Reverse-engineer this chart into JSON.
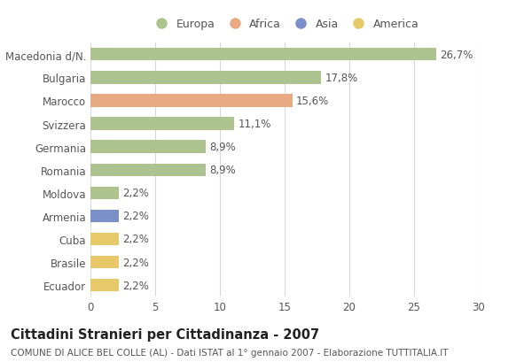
{
  "categories": [
    "Macedonia d/N.",
    "Bulgaria",
    "Marocco",
    "Svizzera",
    "Germania",
    "Romania",
    "Moldova",
    "Armenia",
    "Cuba",
    "Brasile",
    "Ecuador"
  ],
  "values": [
    26.7,
    17.8,
    15.6,
    11.1,
    8.9,
    8.9,
    2.2,
    2.2,
    2.2,
    2.2,
    2.2
  ],
  "labels": [
    "26,7%",
    "17,8%",
    "15,6%",
    "11,1%",
    "8,9%",
    "8,9%",
    "2,2%",
    "2,2%",
    "2,2%",
    "2,2%",
    "2,2%"
  ],
  "colors": [
    "#adc490",
    "#adc490",
    "#e8aa82",
    "#adc490",
    "#adc490",
    "#adc490",
    "#adc490",
    "#7b8fc8",
    "#e8c96a",
    "#e8c96a",
    "#e8c96a"
  ],
  "legend_labels": [
    "Europa",
    "Africa",
    "Asia",
    "America"
  ],
  "legend_colors": [
    "#adc490",
    "#e8aa82",
    "#7b8fc8",
    "#e8c96a"
  ],
  "xlim": [
    0,
    30
  ],
  "xticks": [
    0,
    5,
    10,
    15,
    20,
    25,
    30
  ],
  "title": "Cittadini Stranieri per Cittadinanza - 2007",
  "subtitle": "COMUNE DI ALICE BEL COLLE (AL) - Dati ISTAT al 1° gennaio 2007 - Elaborazione TUTTITALIA.IT",
  "bg_color": "#ffffff",
  "grid_color": "#d8d8d8",
  "bar_height": 0.55,
  "label_fontsize": 8.5,
  "tick_fontsize": 8.5,
  "title_fontsize": 10.5,
  "subtitle_fontsize": 7.5,
  "text_color": "#555555",
  "title_color": "#222222"
}
